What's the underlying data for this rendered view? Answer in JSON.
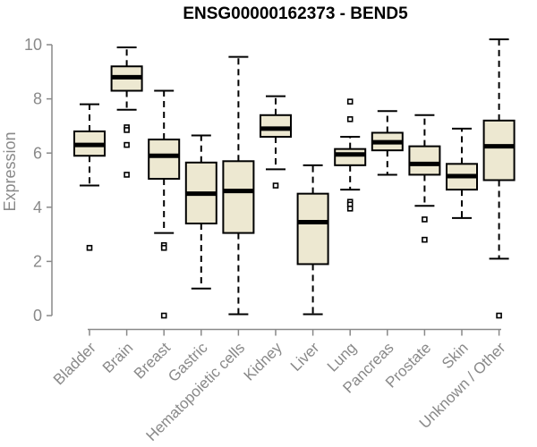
{
  "chart_data": {
    "type": "boxplot",
    "title": "ENSG00000162373 - BEND5",
    "ylabel": "Expression",
    "xlabel": "",
    "ylim": [
      0,
      10
    ],
    "yticks": [
      0,
      2,
      4,
      6,
      8,
      10
    ],
    "grid": false,
    "legend": false,
    "colors": {
      "box_fill": "#EDE8D1",
      "box_stroke": "#000000",
      "axis_gray": "#898989",
      "title_color": "#000000"
    },
    "categories": [
      "Bladder",
      "Brain",
      "Breast",
      "Gastric",
      "Hematopoietic cells",
      "Kidney",
      "Liver",
      "Lung",
      "Pancreas",
      "Prostate",
      "Skin",
      "Unknown / Other"
    ],
    "series": [
      {
        "category": "Bladder",
        "low": 4.8,
        "q1": 5.9,
        "median": 6.3,
        "q3": 6.8,
        "high": 7.8,
        "outliers": [
          2.5
        ]
      },
      {
        "category": "Brain",
        "low": 7.6,
        "q1": 8.3,
        "median": 8.8,
        "q3": 9.2,
        "high": 9.9,
        "outliers": [
          6.95,
          6.85,
          6.3,
          5.2
        ]
      },
      {
        "category": "Breast",
        "low": 3.05,
        "q1": 5.05,
        "median": 5.9,
        "q3": 6.5,
        "high": 8.3,
        "outliers": [
          2.6,
          2.5,
          0
        ]
      },
      {
        "category": "Gastric",
        "low": 1.0,
        "q1": 3.4,
        "median": 4.5,
        "q3": 5.65,
        "high": 6.65,
        "outliers": []
      },
      {
        "category": "Hematopoietic cells",
        "low": 0.05,
        "q1": 3.05,
        "median": 4.6,
        "q3": 5.7,
        "high": 9.55,
        "outliers": []
      },
      {
        "category": "Kidney",
        "low": 5.4,
        "q1": 6.6,
        "median": 6.9,
        "q3": 7.4,
        "high": 8.1,
        "outliers": [
          4.8
        ]
      },
      {
        "category": "Liver",
        "low": 0.05,
        "q1": 1.9,
        "median": 3.45,
        "q3": 4.5,
        "high": 5.55,
        "outliers": []
      },
      {
        "category": "Lung",
        "low": 4.65,
        "q1": 5.55,
        "median": 5.95,
        "q3": 6.15,
        "high": 6.6,
        "outliers": [
          7.9,
          7.25,
          4.2,
          4.1,
          3.95
        ]
      },
      {
        "category": "Pancreas",
        "low": 5.2,
        "q1": 6.1,
        "median": 6.4,
        "q3": 6.75,
        "high": 7.55,
        "outliers": []
      },
      {
        "category": "Prostate",
        "low": 4.05,
        "q1": 5.2,
        "median": 5.6,
        "q3": 6.25,
        "high": 7.4,
        "outliers": [
          3.55,
          2.8
        ]
      },
      {
        "category": "Skin",
        "low": 3.6,
        "q1": 4.65,
        "median": 5.15,
        "q3": 5.6,
        "high": 6.9,
        "outliers": []
      },
      {
        "category": "Unknown / Other",
        "low": 2.1,
        "q1": 5.0,
        "median": 6.25,
        "q3": 7.2,
        "high": 10.2,
        "outliers": [
          0
        ]
      }
    ]
  }
}
